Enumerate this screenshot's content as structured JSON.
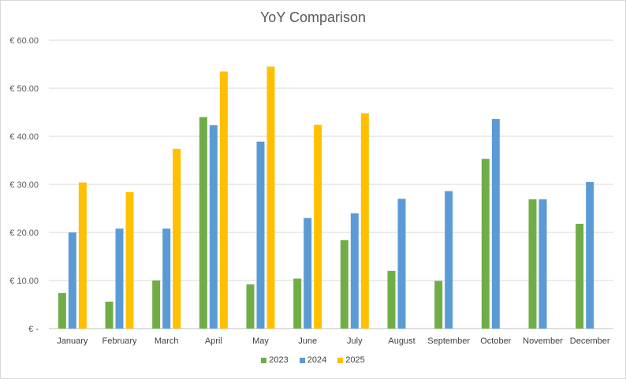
{
  "chart_data": {
    "type": "bar",
    "title": "YoY Comparison",
    "xlabel": "",
    "ylabel": "",
    "ylim": [
      0,
      60
    ],
    "yticks": [
      {
        "value": 0,
        "label": "€ -"
      },
      {
        "value": 10,
        "label": "€ 10.00"
      },
      {
        "value": 20,
        "label": "€ 20.00"
      },
      {
        "value": 30,
        "label": "€ 30.00"
      },
      {
        "value": 40,
        "label": "€ 40.00"
      },
      {
        "value": 50,
        "label": "€ 50.00"
      },
      {
        "value": 60,
        "label": "€ 60.00"
      }
    ],
    "grid": true,
    "legend": "bottom",
    "categories": [
      "January",
      "February",
      "March",
      "April",
      "May",
      "June",
      "July",
      "August",
      "September",
      "October",
      "November",
      "December"
    ],
    "series": [
      {
        "name": "2023",
        "color": "#70ad47",
        "values": [
          7.4,
          5.6,
          10.0,
          44.0,
          9.2,
          10.4,
          18.4,
          12.0,
          9.9,
          35.3,
          26.9,
          21.8
        ]
      },
      {
        "name": "2024",
        "color": "#5b9bd5",
        "values": [
          20.0,
          20.8,
          20.8,
          42.3,
          38.9,
          23.0,
          24.0,
          27.0,
          28.6,
          43.6,
          26.9,
          30.5
        ]
      },
      {
        "name": "2025",
        "color": "#ffc000",
        "values": [
          30.4,
          28.4,
          37.4,
          53.5,
          54.5,
          42.4,
          44.8,
          null,
          null,
          null,
          null,
          null
        ]
      }
    ]
  }
}
